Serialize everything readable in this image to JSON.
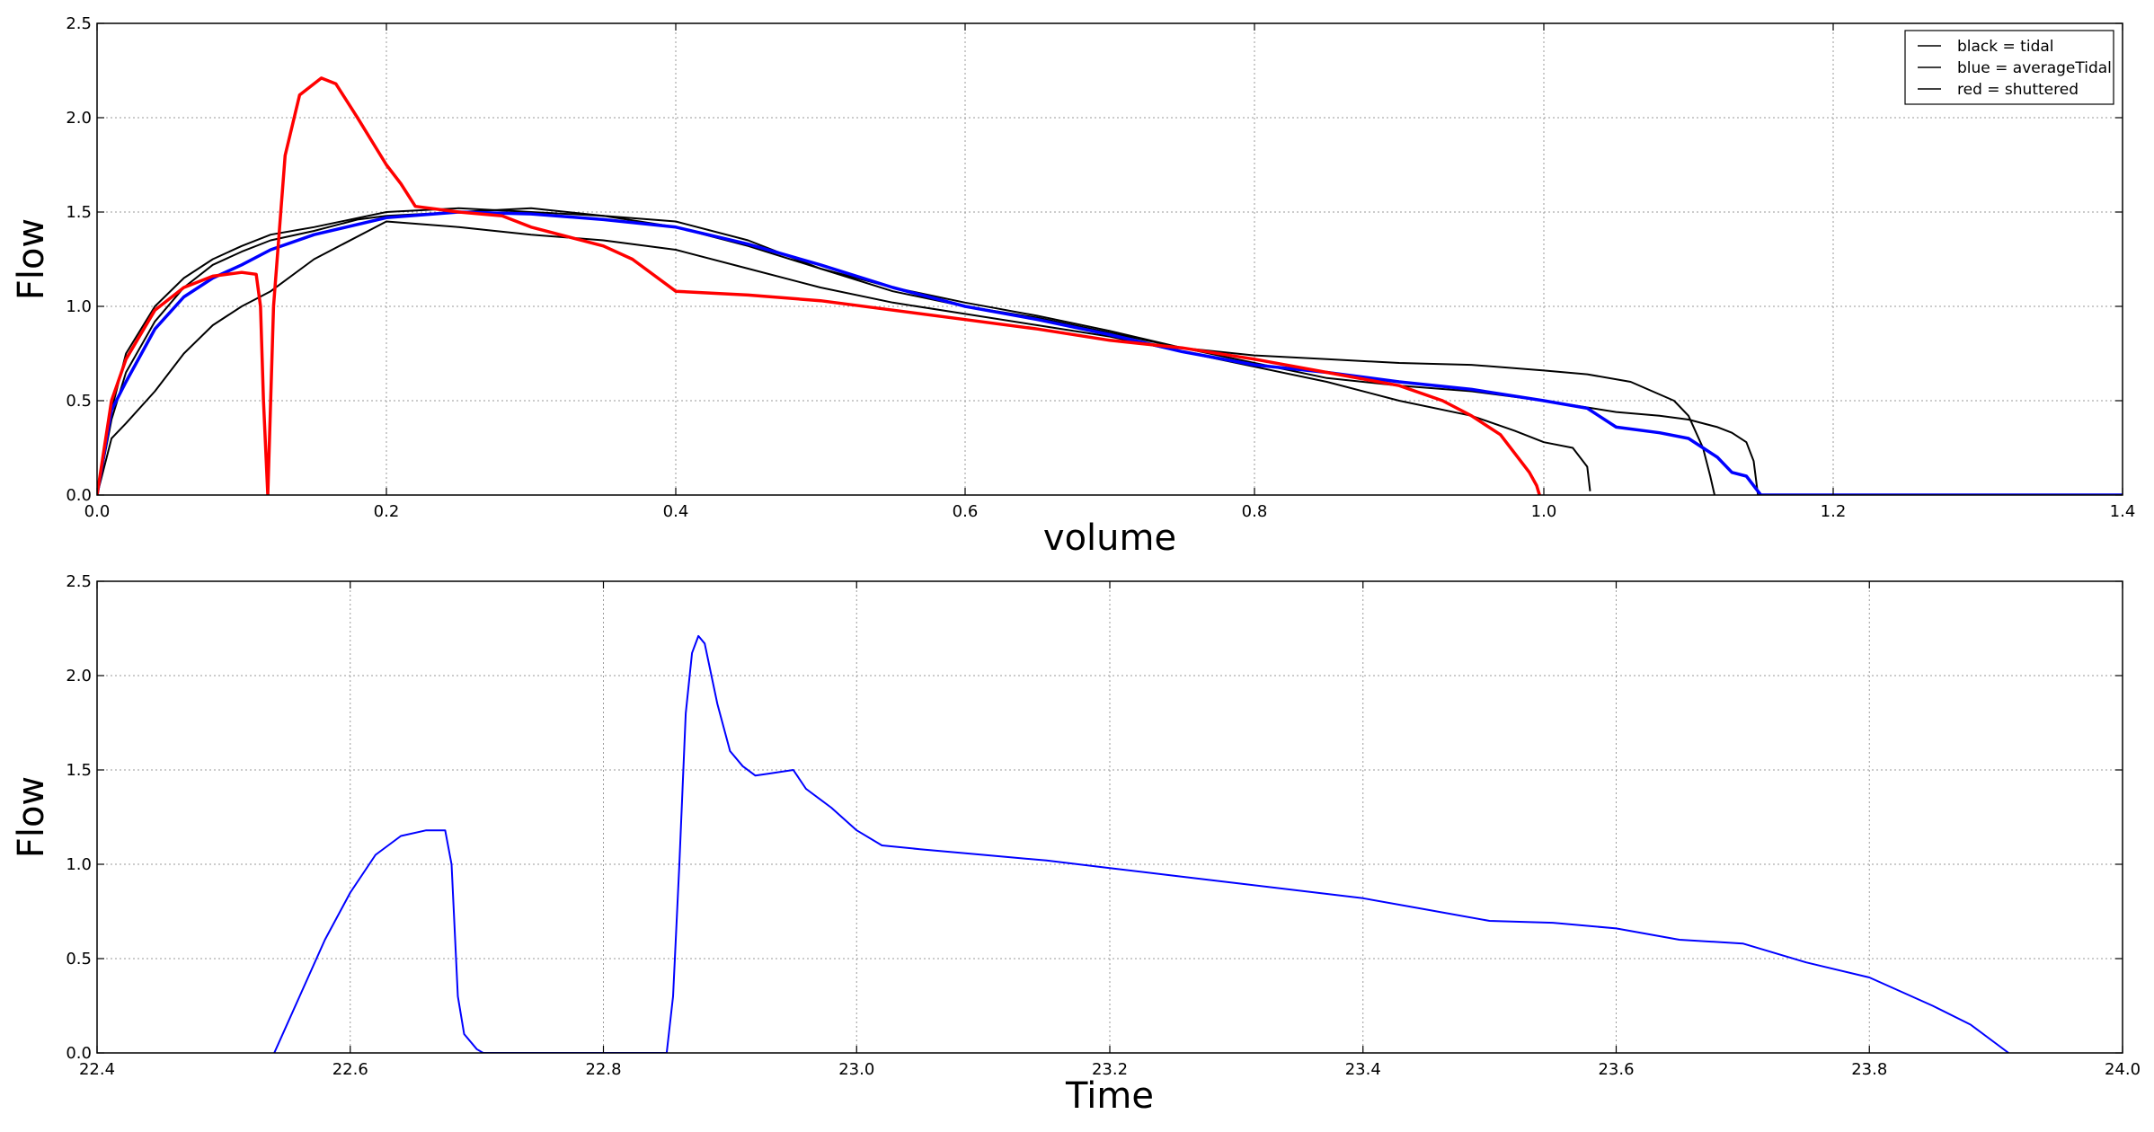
{
  "chart_data": [
    {
      "type": "line",
      "title": "",
      "xlabel": "volume",
      "ylabel": "Flow",
      "xlim": [
        0.0,
        1.4
      ],
      "ylim": [
        0.0,
        2.5
      ],
      "x_ticks": [
        "0.0",
        "0.2",
        "0.4",
        "0.6",
        "0.8",
        "1.0",
        "1.2",
        "1.4"
      ],
      "y_ticks": [
        "0.0",
        "0.5",
        "1.0",
        "1.5",
        "2.0",
        "2.5"
      ],
      "grid": true,
      "legend_position": "top-right",
      "legend": [
        "black = tidal",
        "blue = averageTidal",
        "red = shuttered"
      ],
      "series": [
        {
          "color": "#000000",
          "x": [
            0.0,
            0.01,
            0.02,
            0.04,
            0.06,
            0.08,
            0.1,
            0.12,
            0.15,
            0.18,
            0.2,
            0.25,
            0.3,
            0.35,
            0.4,
            0.45,
            0.5,
            0.55,
            0.6,
            0.65,
            0.7,
            0.75,
            0.8,
            0.85,
            0.9,
            0.95,
            1.0,
            1.03,
            1.06,
            1.09,
            1.1,
            1.11,
            1.115,
            1.118
          ],
          "y": [
            0.0,
            0.4,
            0.65,
            0.92,
            1.1,
            1.22,
            1.29,
            1.35,
            1.4,
            1.46,
            1.48,
            1.5,
            1.52,
            1.48,
            1.42,
            1.32,
            1.2,
            1.08,
            1.0,
            0.94,
            0.86,
            0.78,
            0.74,
            0.72,
            0.7,
            0.69,
            0.66,
            0.64,
            0.6,
            0.5,
            0.42,
            0.25,
            0.1,
            0.0
          ]
        },
        {
          "color": "#000000",
          "x": [
            0.0,
            0.01,
            0.02,
            0.04,
            0.06,
            0.08,
            0.1,
            0.12,
            0.15,
            0.2,
            0.25,
            0.3,
            0.35,
            0.4,
            0.45,
            0.5,
            0.55,
            0.6,
            0.65,
            0.7,
            0.75,
            0.8,
            0.85,
            0.9,
            0.95,
            0.98,
            1.0,
            1.02,
            1.03,
            1.032
          ],
          "y": [
            0.0,
            0.3,
            0.38,
            0.55,
            0.75,
            0.9,
            1.0,
            1.08,
            1.25,
            1.45,
            1.42,
            1.38,
            1.35,
            1.3,
            1.2,
            1.1,
            1.02,
            0.96,
            0.9,
            0.84,
            0.76,
            0.68,
            0.6,
            0.5,
            0.42,
            0.34,
            0.28,
            0.25,
            0.15,
            0.02
          ]
        },
        {
          "color": "#000000",
          "x": [
            0.0,
            0.01,
            0.02,
            0.04,
            0.06,
            0.08,
            0.1,
            0.12,
            0.15,
            0.2,
            0.25,
            0.3,
            0.35,
            0.4,
            0.45,
            0.5,
            0.55,
            0.6,
            0.65,
            0.7,
            0.75,
            0.8,
            0.85,
            0.9,
            0.95,
            1.0,
            1.05,
            1.08,
            1.1,
            1.12,
            1.13,
            1.14,
            1.145,
            1.148
          ],
          "y": [
            0.0,
            0.45,
            0.75,
            1.0,
            1.15,
            1.25,
            1.32,
            1.38,
            1.42,
            1.5,
            1.52,
            1.5,
            1.48,
            1.45,
            1.35,
            1.2,
            1.1,
            1.02,
            0.95,
            0.87,
            0.78,
            0.7,
            0.62,
            0.58,
            0.55,
            0.5,
            0.44,
            0.42,
            0.4,
            0.36,
            0.33,
            0.28,
            0.18,
            0.0
          ]
        },
        {
          "color": "#0000ff",
          "x": [
            0.0,
            0.01,
            0.02,
            0.04,
            0.06,
            0.08,
            0.1,
            0.12,
            0.15,
            0.2,
            0.25,
            0.3,
            0.35,
            0.4,
            0.45,
            0.5,
            0.55,
            0.6,
            0.65,
            0.7,
            0.75,
            0.8,
            0.85,
            0.9,
            0.95,
            1.0,
            1.03,
            1.05,
            1.08,
            1.1,
            1.12,
            1.13,
            1.14,
            1.15,
            1.2,
            1.3,
            1.4
          ],
          "y": [
            0.0,
            0.45,
            0.6,
            0.88,
            1.05,
            1.15,
            1.22,
            1.3,
            1.38,
            1.47,
            1.5,
            1.49,
            1.46,
            1.42,
            1.33,
            1.22,
            1.1,
            1.0,
            0.93,
            0.85,
            0.76,
            0.69,
            0.65,
            0.6,
            0.56,
            0.5,
            0.46,
            0.36,
            0.33,
            0.3,
            0.2,
            0.12,
            0.1,
            0.0,
            0.0,
            0.0,
            0.0
          ]
        },
        {
          "color": "#ff0000",
          "x": [
            0.0,
            0.01,
            0.02,
            0.04,
            0.06,
            0.08,
            0.1,
            0.11,
            0.113,
            0.115,
            0.118,
            0.122,
            0.13,
            0.14,
            0.155,
            0.165,
            0.18,
            0.2,
            0.21,
            0.22,
            0.25,
            0.28,
            0.3,
            0.35,
            0.37,
            0.4,
            0.45,
            0.5,
            0.55,
            0.6,
            0.65,
            0.7,
            0.75,
            0.8,
            0.85,
            0.9,
            0.93,
            0.95,
            0.97,
            0.98,
            0.99,
            0.995,
            0.997
          ],
          "y": [
            0.0,
            0.5,
            0.72,
            0.98,
            1.1,
            1.16,
            1.18,
            1.17,
            1.0,
            0.5,
            0.0,
            1.0,
            1.8,
            2.12,
            2.21,
            2.18,
            2.0,
            1.75,
            1.65,
            1.53,
            1.5,
            1.48,
            1.42,
            1.32,
            1.25,
            1.08,
            1.06,
            1.03,
            0.98,
            0.93,
            0.88,
            0.82,
            0.78,
            0.72,
            0.65,
            0.58,
            0.5,
            0.42,
            0.32,
            0.22,
            0.12,
            0.05,
            0.0
          ]
        }
      ]
    },
    {
      "type": "line",
      "title": "",
      "xlabel": "Time",
      "ylabel": "Flow",
      "xlim": [
        22.4,
        24.0
      ],
      "ylim": [
        0.0,
        2.5
      ],
      "x_ticks": [
        "22.4",
        "22.6",
        "22.8",
        "23.0",
        "23.2",
        "23.4",
        "23.6",
        "23.8",
        "24.0"
      ],
      "y_ticks": [
        "0.0",
        "0.5",
        "1.0",
        "1.5",
        "2.0",
        "2.5"
      ],
      "grid": true,
      "series": [
        {
          "color": "#0000ff",
          "x": [
            22.54,
            22.56,
            22.58,
            22.6,
            22.62,
            22.64,
            22.66,
            22.675,
            22.68,
            22.685,
            22.69,
            22.7,
            22.705,
            22.72,
            22.8,
            22.85,
            22.855,
            22.86,
            22.865,
            22.87,
            22.875,
            22.88,
            22.89,
            22.9,
            22.91,
            22.92,
            22.93,
            22.95,
            22.96,
            22.98,
            23.0,
            23.02,
            23.05,
            23.1,
            23.15,
            23.2,
            23.25,
            23.3,
            23.35,
            23.4,
            23.45,
            23.5,
            23.55,
            23.6,
            23.65,
            23.7,
            23.75,
            23.8,
            23.85,
            23.88,
            23.9,
            23.91
          ],
          "y": [
            0.0,
            0.3,
            0.6,
            0.85,
            1.05,
            1.15,
            1.18,
            1.18,
            1.0,
            0.3,
            0.1,
            0.02,
            0.0,
            0.0,
            0.0,
            0.0,
            0.3,
            1.0,
            1.8,
            2.12,
            2.21,
            2.17,
            1.85,
            1.6,
            1.52,
            1.47,
            1.48,
            1.5,
            1.4,
            1.3,
            1.18,
            1.1,
            1.08,
            1.05,
            1.02,
            0.98,
            0.94,
            0.9,
            0.86,
            0.82,
            0.76,
            0.7,
            0.69,
            0.66,
            0.6,
            0.58,
            0.48,
            0.4,
            0.25,
            0.15,
            0.05,
            0.0
          ]
        }
      ]
    }
  ]
}
